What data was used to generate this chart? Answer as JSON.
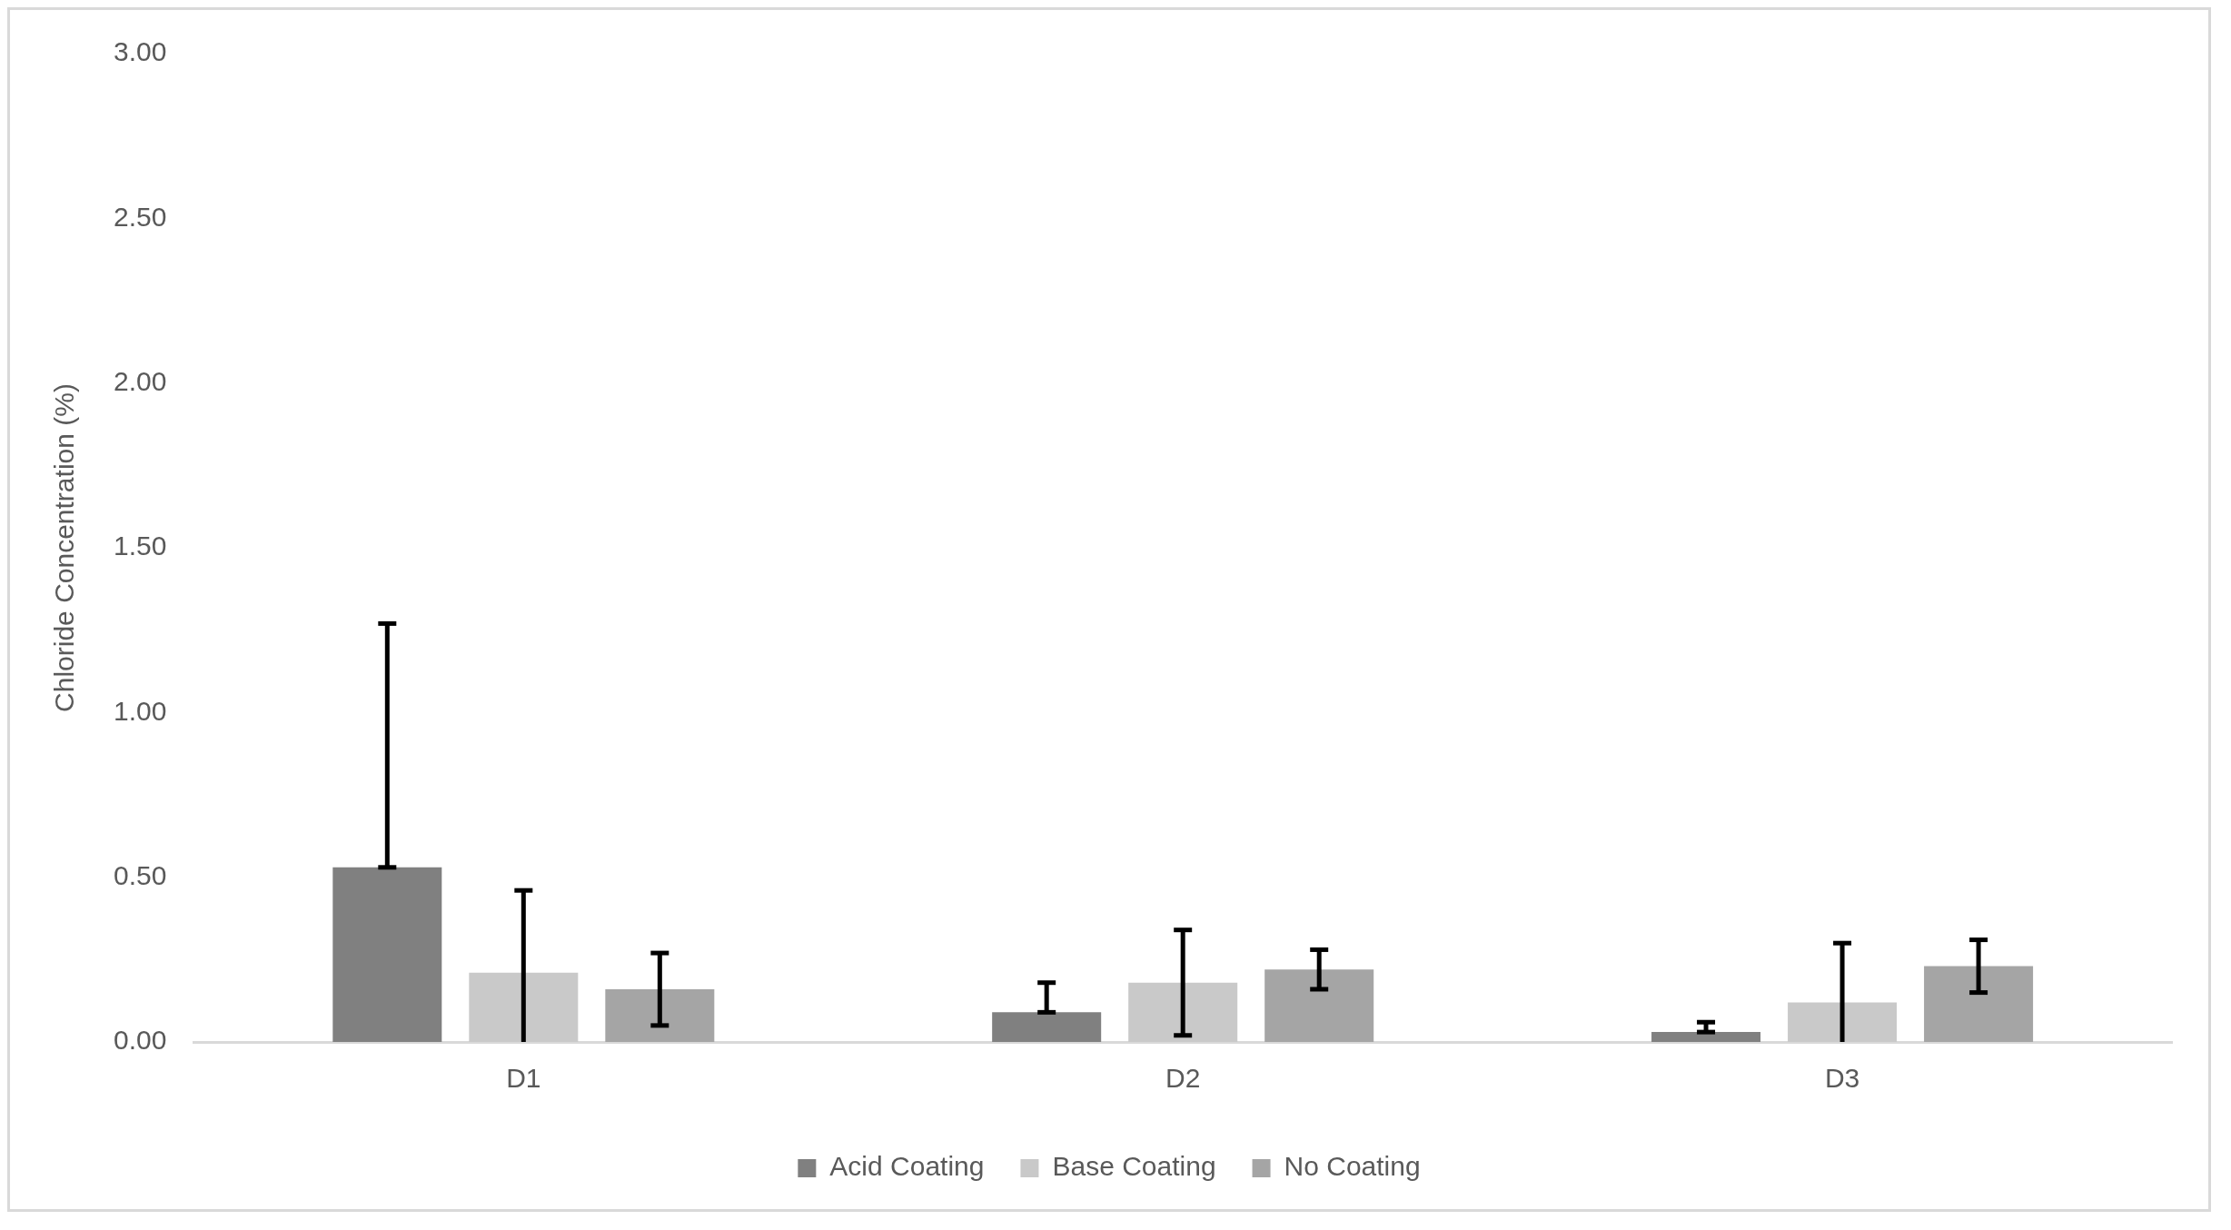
{
  "chart_data": {
    "type": "bar",
    "ylabel": "Chloride Concentration (%)",
    "categories": [
      "D1",
      "D2",
      "D3"
    ],
    "series": [
      {
        "name": "Acid Coating",
        "color": "#808080",
        "values": [
          0.53,
          0.09,
          0.03
        ],
        "errors": [
          [
            0.53,
            1.27
          ],
          [
            0.09,
            0.18
          ],
          [
            0.03,
            0.06
          ]
        ]
      },
      {
        "name": "Base Coating",
        "color": "#c9c9c9",
        "values": [
          0.21,
          0.18,
          0.12
        ],
        "errors": [
          [
            0.0,
            0.46
          ],
          [
            0.02,
            0.34
          ],
          [
            0.0,
            0.3
          ]
        ]
      },
      {
        "name": "No Coating",
        "color": "#a5a5a5",
        "values": [
          0.16,
          0.22,
          0.23
        ],
        "errors": [
          [
            0.05,
            0.27
          ],
          [
            0.16,
            0.28
          ],
          [
            0.15,
            0.31
          ]
        ]
      }
    ],
    "ylim": [
      0,
      3
    ],
    "yticks": [
      {
        "value": 0,
        "label": "0.00"
      },
      {
        "value": 0.5,
        "label": "0.50"
      },
      {
        "value": 1,
        "label": "1.00"
      },
      {
        "value": 1.5,
        "label": "1.50"
      },
      {
        "value": 2,
        "label": "2.00"
      },
      {
        "value": 2.5,
        "label": "2.50"
      },
      {
        "value": 3,
        "label": "3.00"
      }
    ],
    "grid": false,
    "legend": "bottom"
  }
}
